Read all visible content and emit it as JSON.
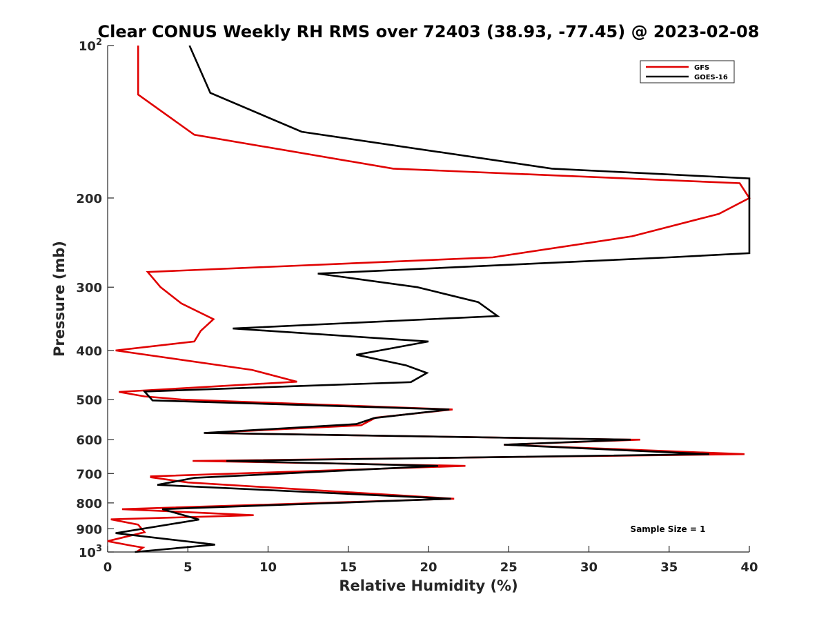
{
  "chart_data": {
    "type": "line",
    "title": "Clear CONUS Weekly RH RMS over 72403 (38.93, -77.45) @ 2023-02-08",
    "xlabel": "Relative Humidity (%)",
    "ylabel": "Pressure (mb)",
    "xlim": [
      0,
      40
    ],
    "ylim": [
      100,
      1000
    ],
    "y_scale": "log",
    "y_reversed": true,
    "grid": false,
    "legend_position": "top-right",
    "x_ticks": [
      0,
      5,
      10,
      15,
      20,
      25,
      30,
      35,
      40
    ],
    "x_tick_labels": [
      "0",
      "5",
      "10",
      "15",
      "20",
      "25",
      "30",
      "35",
      "40"
    ],
    "y_ticks": [
      100,
      200,
      300,
      400,
      500,
      600,
      700,
      800,
      900,
      1000
    ],
    "y_tick_labels": [
      {
        "base": "10",
        "exp": "2"
      },
      {
        "base": "200",
        "exp": ""
      },
      {
        "base": "300",
        "exp": ""
      },
      {
        "base": "400",
        "exp": ""
      },
      {
        "base": "500",
        "exp": ""
      },
      {
        "base": "600",
        "exp": ""
      },
      {
        "base": "700",
        "exp": ""
      },
      {
        "base": "800",
        "exp": ""
      },
      {
        "base": "900",
        "exp": ""
      },
      {
        "base": "10",
        "exp": "3"
      }
    ],
    "annotation": "Sample Size = 1",
    "series": [
      {
        "name": "GFS",
        "color": "#e00000",
        "points": [
          [
            1.9,
            100
          ],
          [
            1.9,
            125
          ],
          [
            5.4,
            150
          ],
          [
            17.8,
            175
          ],
          [
            39.4,
            187
          ],
          [
            40.0,
            200
          ],
          [
            38.1,
            215
          ],
          [
            32.7,
            238
          ],
          [
            24.0,
            262
          ],
          [
            2.5,
            280
          ],
          [
            3.3,
            300
          ],
          [
            4.6,
            323
          ],
          [
            6.6,
            347
          ],
          [
            5.8,
            366
          ],
          [
            5.4,
            384
          ],
          [
            0.5,
            400
          ],
          [
            9.0,
            437
          ],
          [
            11.8,
            461
          ],
          [
            0.7,
            483
          ],
          [
            2.3,
            493
          ],
          [
            4.6,
            500
          ],
          [
            21.5,
            523
          ],
          [
            16.7,
            543
          ],
          [
            15.8,
            562
          ],
          [
            6.1,
            582
          ],
          [
            32.7,
            600
          ],
          [
            33.2,
            600
          ],
          [
            24.7,
            614
          ],
          [
            39.7,
            641
          ],
          [
            5.3,
            661
          ],
          [
            22.3,
            676
          ],
          [
            2.7,
            709
          ],
          [
            2.7,
            712
          ],
          [
            5.0,
            729
          ],
          [
            21.6,
            785
          ],
          [
            0.9,
            823
          ],
          [
            9.1,
            846
          ],
          [
            0.2,
            862
          ],
          [
            1.9,
            883
          ],
          [
            2.3,
            914
          ],
          [
            0.0,
            952
          ],
          [
            1.5,
            972
          ],
          [
            2.2,
            980
          ],
          [
            1.8,
            1000
          ]
        ]
      },
      {
        "name": "GOES-16",
        "color": "#000000",
        "points": [
          [
            5.1,
            100
          ],
          [
            6.4,
            124
          ],
          [
            12.1,
            148
          ],
          [
            27.7,
            175
          ],
          [
            40.0,
            183
          ],
          [
            40.0,
            257
          ],
          [
            35.0,
            262
          ],
          [
            13.1,
            282
          ],
          [
            19.3,
            300
          ],
          [
            23.1,
            321
          ],
          [
            24.3,
            342
          ],
          [
            7.8,
            362
          ],
          [
            20.0,
            384
          ],
          [
            15.5,
            408
          ],
          [
            18.6,
            428
          ],
          [
            19.9,
            443
          ],
          [
            18.9,
            462
          ],
          [
            2.3,
            482
          ],
          [
            2.8,
            502
          ],
          [
            21.3,
            523
          ],
          [
            16.6,
            544
          ],
          [
            15.5,
            559
          ],
          [
            6.0,
            582
          ],
          [
            32.6,
            600
          ],
          [
            24.7,
            614
          ],
          [
            37.5,
            641
          ],
          [
            7.4,
            661
          ],
          [
            20.6,
            676
          ],
          [
            5.4,
            714
          ],
          [
            3.1,
            737
          ],
          [
            21.4,
            785
          ],
          [
            3.4,
            823
          ],
          [
            5.7,
            863
          ],
          [
            0.5,
            918
          ],
          [
            6.7,
            967
          ],
          [
            1.7,
            1000
          ]
        ]
      }
    ]
  }
}
